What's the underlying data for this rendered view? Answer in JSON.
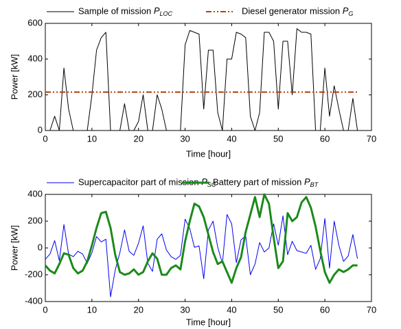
{
  "chart_data": [
    {
      "type": "line",
      "xlabel": "Time [hour]",
      "ylabel": "Power [kW]",
      "x": [
        0,
        1,
        2,
        3,
        4,
        5,
        6,
        7,
        8,
        9,
        10,
        11,
        12,
        13,
        14,
        15,
        16,
        17,
        18,
        19,
        20,
        21,
        22,
        23,
        24,
        25,
        26,
        27,
        28,
        29,
        30,
        31,
        32,
        33,
        34,
        35,
        36,
        37,
        38,
        39,
        40,
        41,
        42,
        43,
        44,
        45,
        46,
        47,
        48,
        49,
        50,
        51,
        52,
        53,
        54,
        55,
        56,
        57,
        58,
        59,
        60,
        61,
        62,
        63,
        64,
        65,
        66,
        67
      ],
      "series": [
        {
          "name": "Sample of mission P_LOC",
          "color": "#000000",
          "width": 1,
          "style": "solid",
          "values": [
            0,
            0,
            80,
            0,
            350,
            120,
            0,
            0,
            0,
            0,
            200,
            450,
            520,
            550,
            0,
            0,
            0,
            150,
            0,
            0,
            50,
            200,
            0,
            0,
            200,
            120,
            0,
            0,
            0,
            0,
            480,
            560,
            550,
            540,
            120,
            450,
            450,
            100,
            0,
            400,
            400,
            550,
            540,
            520,
            80,
            0,
            100,
            550,
            550,
            500,
            120,
            500,
            500,
            200,
            570,
            550,
            550,
            540,
            0,
            0,
            350,
            80,
            250,
            120,
            0,
            0,
            180,
            0
          ]
        },
        {
          "name": "Diesel generator mission P_G",
          "color": "#b5400a",
          "width": 2,
          "style": "dash-dot",
          "values": [
            215,
            215,
            215,
            215,
            215,
            215,
            215,
            215,
            215,
            215,
            215,
            215,
            215,
            215,
            215,
            215,
            215,
            215,
            215,
            215,
            215,
            215,
            215,
            215,
            215,
            215,
            215,
            215,
            215,
            215,
            215,
            215,
            215,
            215,
            215,
            215,
            215,
            215,
            215,
            215,
            215,
            215,
            215,
            215,
            215,
            215,
            215,
            215,
            215,
            215,
            215,
            215,
            215,
            215,
            215,
            215,
            215,
            215,
            215,
            215,
            215,
            215,
            215,
            215,
            215,
            215,
            215,
            215
          ]
        }
      ],
      "xlim": [
        0,
        70
      ],
      "xticks": [
        0,
        10,
        20,
        30,
        40,
        50,
        60,
        70
      ],
      "ylim": [
        0,
        600
      ],
      "yticks": [
        0,
        200,
        400,
        600
      ]
    },
    {
      "type": "line",
      "xlabel": "Time [hour]",
      "ylabel": "Power [kW]",
      "x": [
        0,
        1,
        2,
        3,
        4,
        5,
        6,
        7,
        8,
        9,
        10,
        11,
        12,
        13,
        14,
        15,
        16,
        17,
        18,
        19,
        20,
        21,
        22,
        23,
        24,
        25,
        26,
        27,
        28,
        29,
        30,
        31,
        32,
        33,
        34,
        35,
        36,
        37,
        38,
        39,
        40,
        41,
        42,
        43,
        44,
        45,
        46,
        47,
        48,
        49,
        50,
        51,
        52,
        53,
        54,
        55,
        56,
        57,
        58,
        59,
        60,
        61,
        62,
        63,
        64,
        65,
        66,
        67
      ],
      "series": [
        {
          "name": "Supercapacitor part of mission P_SC",
          "color": "#0000ee",
          "width": 1,
          "style": "solid",
          "values": [
            -85,
            -45,
            55,
            -95,
            175,
            -45,
            -65,
            -25,
            -45,
            -115,
            -35,
            85,
            45,
            65,
            -365,
            -165,
            -35,
            135,
            -25,
            -55,
            35,
            165,
            -115,
            -175,
            65,
            105,
            -15,
            -65,
            -85,
            -55,
            215,
            145,
            5,
            15,
            -230,
            135,
            200,
            5,
            -115,
            250,
            180,
            -110,
            60,
            90,
            -200,
            -120,
            40,
            -30,
            0,
            180,
            20,
            240,
            -50,
            50,
            -20,
            -30,
            -40,
            20,
            -160,
            -80,
            220,
            -150,
            200,
            20,
            -100,
            -60,
            100,
            -80
          ]
        },
        {
          "name": "Battery part of mission P_BT",
          "color": "#1a8a1a",
          "width": 3,
          "style": "solid",
          "values": [
            -130,
            -170,
            -190,
            -120,
            -40,
            -50,
            -150,
            -190,
            -170,
            -100,
            20,
            150,
            260,
            270,
            150,
            -50,
            -180,
            -200,
            -190,
            -160,
            -200,
            -180,
            -100,
            -40,
            -80,
            -200,
            -200,
            -150,
            -130,
            -160,
            50,
            200,
            330,
            310,
            230,
            100,
            -30,
            -120,
            -100,
            -180,
            -260,
            -150,
            -70,
            120,
            250,
            380,
            230,
            400,
            330,
            80,
            -150,
            -100,
            260,
            200,
            230,
            340,
            380,
            300,
            160,
            -20,
            -180,
            -260,
            -200,
            -160,
            -180,
            -160,
            -130,
            -130
          ]
        }
      ],
      "xlim": [
        0,
        70
      ],
      "xticks": [
        0,
        10,
        20,
        30,
        40,
        50,
        60,
        70
      ],
      "ylim": [
        -400,
        400
      ],
      "yticks": [
        -400,
        -200,
        0,
        200,
        400
      ]
    }
  ]
}
